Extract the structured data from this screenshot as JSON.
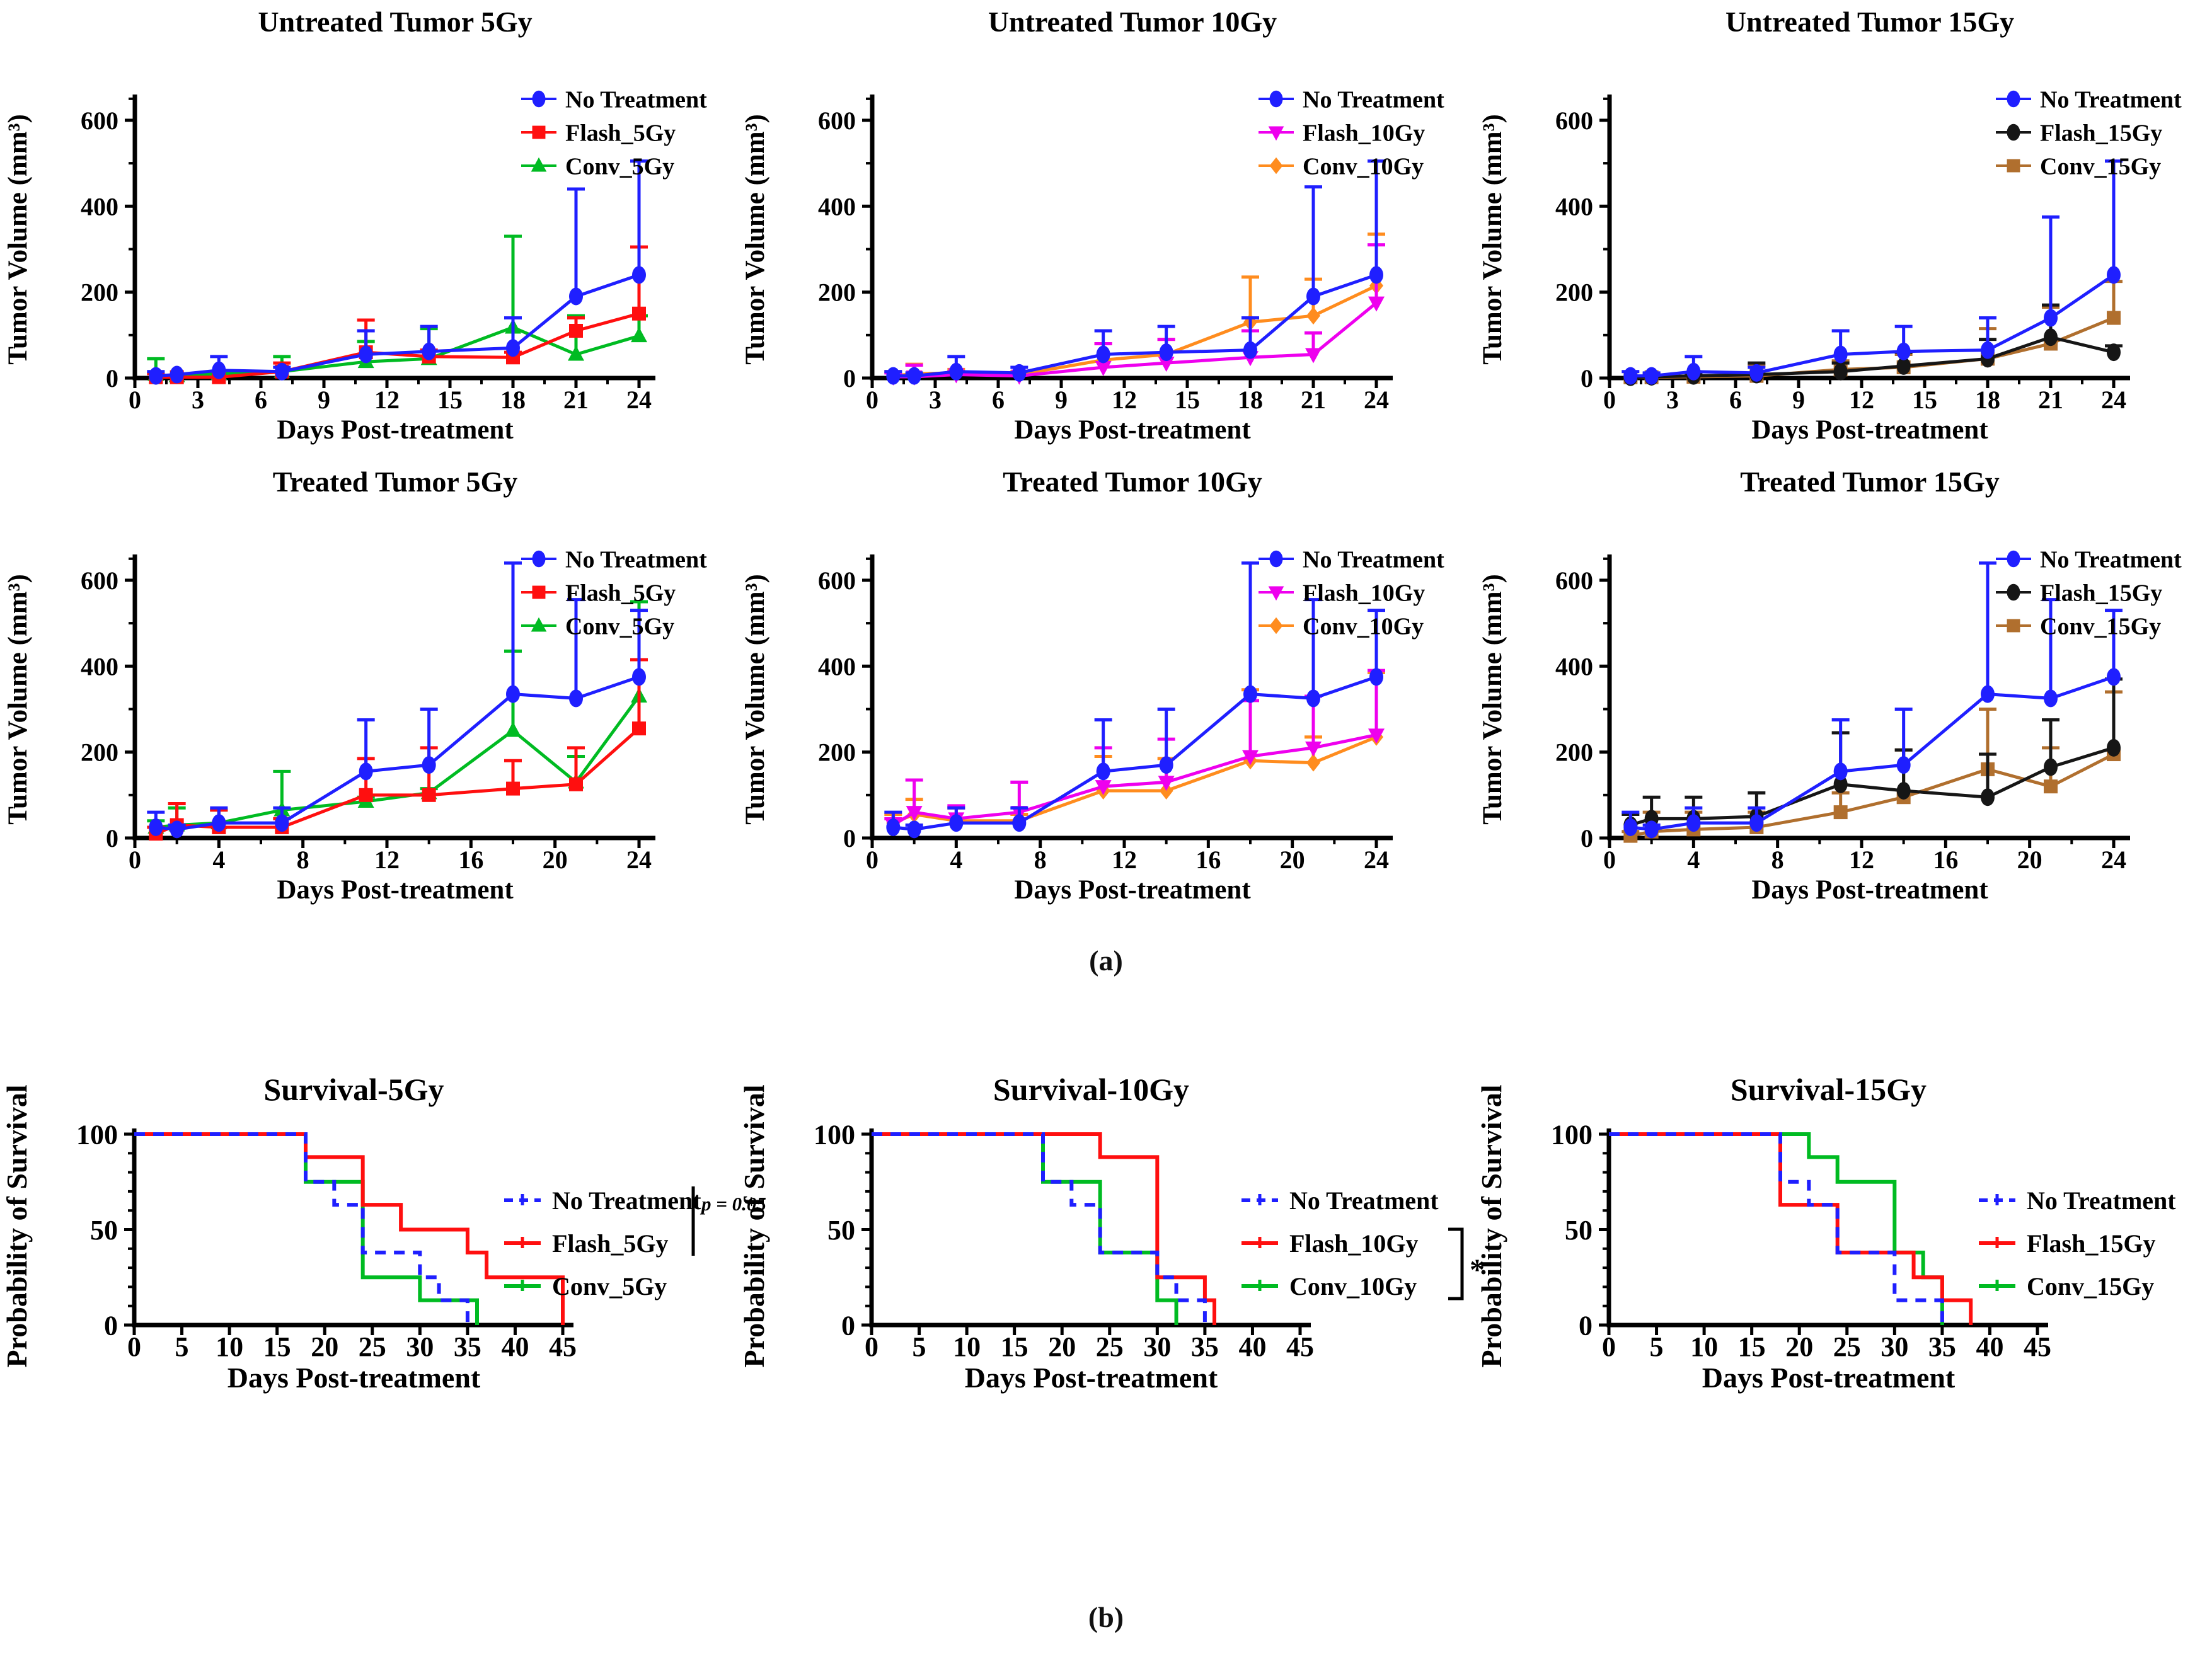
{
  "figure": {
    "panel_a_label": "(a)",
    "panel_b_label": "(b)"
  },
  "colors": {
    "blue": "#1f1fff",
    "red": "#ff0f0f",
    "green": "#00bb22",
    "magenta": "#ee00ee",
    "orange": "#ff8c1e",
    "black": "#161616",
    "brown": "#b06f2e",
    "axis": "#000000"
  },
  "chart_data": [
    {
      "type": "line",
      "title": "Untreated Tumor 5Gy",
      "xlabel": "Days Post-treatment",
      "ylabel": "Tumor Volume (mm³)",
      "xlim": [
        0,
        25.5
      ],
      "ylim": [
        0,
        660
      ],
      "xticks": [
        0,
        3,
        6,
        9,
        12,
        15,
        18,
        21,
        24
      ],
      "yticks": [
        0,
        200,
        400,
        600
      ],
      "yminors": [
        100,
        300,
        500,
        650
      ],
      "grid": false,
      "legend_position": "right",
      "x": [
        1,
        2,
        4,
        7,
        11,
        14,
        18,
        21,
        24
      ],
      "series": [
        {
          "name": "No Treatment",
          "color_key": "blue",
          "marker": "ellipse",
          "values": [
            5,
            8,
            18,
            15,
            55,
            62,
            70,
            190,
            240
          ],
          "upper": [
            15,
            12,
            50,
            25,
            110,
            120,
            140,
            440,
            505
          ]
        },
        {
          "name": "Flash_5Gy",
          "color_key": "red",
          "marker": "square",
          "values": [
            2,
            2,
            2,
            15,
            60,
            50,
            48,
            110,
            150
          ],
          "upper": [
            10,
            8,
            8,
            35,
            135,
            65,
            60,
            140,
            305
          ]
        },
        {
          "name": "Conv_5Gy",
          "color_key": "green",
          "marker": "triangle-up",
          "values": [
            8,
            5,
            10,
            15,
            38,
            45,
            118,
            55,
            98
          ],
          "upper": [
            45,
            10,
            15,
            50,
            85,
            115,
            330,
            145,
            145
          ]
        }
      ]
    },
    {
      "type": "line",
      "title": "Untreated Tumor 10Gy",
      "xlabel": "Days Post-treatment",
      "ylabel": "Tumor Volume (mm³)",
      "xlim": [
        0,
        25.5
      ],
      "ylim": [
        0,
        660
      ],
      "xticks": [
        0,
        3,
        6,
        9,
        12,
        15,
        18,
        21,
        24
      ],
      "yticks": [
        0,
        200,
        400,
        600
      ],
      "yminors": [
        100,
        300,
        500,
        650
      ],
      "grid": false,
      "legend_position": "right",
      "x": [
        1,
        2,
        4,
        7,
        11,
        14,
        18,
        21,
        24
      ],
      "series": [
        {
          "name": "No Treatment",
          "color_key": "blue",
          "marker": "ellipse",
          "values": [
            5,
            5,
            15,
            12,
            55,
            60,
            65,
            190,
            240
          ],
          "upper": [
            15,
            12,
            50,
            25,
            110,
            120,
            140,
            445,
            505
          ]
        },
        {
          "name": "Flash_10Gy",
          "color_key": "magenta",
          "marker": "triangle-down",
          "values": [
            3,
            3,
            8,
            5,
            25,
            35,
            48,
            55,
            175
          ],
          "upper": [
            12,
            30,
            15,
            10,
            80,
            90,
            110,
            105,
            310
          ]
        },
        {
          "name": "Conv_10Gy",
          "color_key": "orange",
          "marker": "diamond",
          "values": [
            5,
            10,
            12,
            8,
            42,
            55,
            130,
            145,
            215
          ],
          "upper": [
            15,
            32,
            20,
            15,
            80,
            90,
            235,
            230,
            335
          ]
        }
      ]
    },
    {
      "type": "line",
      "title": "Untreated Tumor 15Gy",
      "xlabel": "Days Post-treatment",
      "ylabel": "Tumor Volume (mm³)",
      "xlim": [
        0,
        25.5
      ],
      "ylim": [
        0,
        660
      ],
      "xticks": [
        0,
        3,
        6,
        9,
        12,
        15,
        18,
        21,
        24
      ],
      "yticks": [
        0,
        200,
        400,
        600
      ],
      "yminors": [
        100,
        300,
        500,
        650
      ],
      "grid": false,
      "legend_position": "right",
      "x": [
        1,
        2,
        4,
        7,
        11,
        14,
        18,
        21,
        24
      ],
      "series": [
        {
          "name": "No Treatment",
          "color_key": "blue",
          "marker": "ellipse",
          "values": [
            5,
            5,
            15,
            12,
            55,
            62,
            65,
            140,
            240
          ],
          "upper": [
            15,
            12,
            50,
            25,
            110,
            120,
            140,
            375,
            505
          ]
        },
        {
          "name": "Flash_15Gy",
          "color_key": "black",
          "marker": "ellipse",
          "values": [
            2,
            3,
            5,
            8,
            15,
            28,
            45,
            95,
            60
          ],
          "upper": [
            8,
            10,
            12,
            35,
            35,
            60,
            90,
            170,
            75
          ]
        },
        {
          "name": "Conv_15Gy",
          "color_key": "brown",
          "marker": "square",
          "values": [
            2,
            2,
            3,
            5,
            20,
            25,
            45,
            80,
            140
          ],
          "upper": [
            8,
            8,
            10,
            30,
            40,
            55,
            115,
            165,
            225
          ]
        }
      ]
    },
    {
      "type": "line",
      "title": "Treated Tumor 5Gy",
      "xlabel": "Days Post-treatment",
      "ylabel": "Tumor Volume (mm³)",
      "xlim": [
        0,
        25.5
      ],
      "ylim": [
        0,
        660
      ],
      "xticks": [
        0,
        4,
        8,
        12,
        16,
        20,
        24
      ],
      "yticks": [
        0,
        200,
        400,
        600
      ],
      "yminors": [
        100,
        300,
        500,
        650
      ],
      "grid": false,
      "legend_position": "right",
      "x": [
        1,
        2,
        4,
        7,
        11,
        14,
        18,
        21,
        24
      ],
      "series": [
        {
          "name": "No Treatment",
          "color_key": "blue",
          "marker": "ellipse",
          "values": [
            25,
            20,
            35,
            35,
            155,
            170,
            335,
            325,
            375
          ],
          "upper": [
            60,
            30,
            70,
            70,
            275,
            300,
            640,
            555,
            530
          ]
        },
        {
          "name": "Flash_5Gy",
          "color_key": "red",
          "marker": "square",
          "values": [
            10,
            30,
            25,
            25,
            100,
            100,
            115,
            125,
            255
          ],
          "upper": [
            25,
            80,
            65,
            45,
            185,
            210,
            180,
            210,
            415
          ]
        },
        {
          "name": "Conv_5Gy",
          "color_key": "green",
          "marker": "triangle-up",
          "values": [
            25,
            30,
            35,
            65,
            85,
            105,
            250,
            130,
            330
          ],
          "upper": [
            40,
            70,
            65,
            155,
            95,
            115,
            435,
            190,
            550
          ]
        }
      ]
    },
    {
      "type": "line",
      "title": "Treated Tumor 10Gy",
      "xlabel": "Days Post-treatment",
      "ylabel": "Tumor Volume (mm³)",
      "xlim": [
        0,
        25.5
      ],
      "ylim": [
        0,
        660
      ],
      "xticks": [
        0,
        4,
        8,
        12,
        16,
        20,
        24
      ],
      "yticks": [
        0,
        200,
        400,
        600
      ],
      "yminors": [
        100,
        300,
        500,
        650
      ],
      "grid": false,
      "legend_position": "right",
      "x": [
        1,
        2,
        4,
        7,
        11,
        14,
        18,
        21,
        24
      ],
      "series": [
        {
          "name": "No Treatment",
          "color_key": "blue",
          "marker": "ellipse",
          "values": [
            25,
            20,
            35,
            35,
            155,
            170,
            335,
            325,
            375
          ],
          "upper": [
            60,
            30,
            70,
            70,
            275,
            300,
            640,
            555,
            530
          ]
        },
        {
          "name": "Flash_10Gy",
          "color_key": "magenta",
          "marker": "triangle-down",
          "values": [
            30,
            60,
            45,
            60,
            120,
            130,
            190,
            210,
            240
          ],
          "upper": [
            45,
            135,
            75,
            130,
            210,
            230,
            320,
            330,
            390
          ]
        },
        {
          "name": "Conv_10Gy",
          "color_key": "orange",
          "marker": "diamond",
          "values": [
            35,
            55,
            40,
            40,
            110,
            110,
            180,
            175,
            235
          ],
          "upper": [
            55,
            90,
            70,
            55,
            190,
            185,
            345,
            235,
            385
          ]
        }
      ]
    },
    {
      "type": "line",
      "title": "Treated Tumor 15Gy",
      "xlabel": "Days Post-treatment",
      "ylabel": "Tumor Volume (mm³)",
      "xlim": [
        0,
        25.5
      ],
      "ylim": [
        0,
        660
      ],
      "xticks": [
        0,
        4,
        8,
        12,
        16,
        20,
        24
      ],
      "yticks": [
        0,
        200,
        400,
        600
      ],
      "yminors": [
        100,
        300,
        500,
        650
      ],
      "grid": false,
      "legend_position": "right",
      "x": [
        1,
        2,
        4,
        7,
        11,
        14,
        18,
        21,
        24
      ],
      "series": [
        {
          "name": "No Treatment",
          "color_key": "blue",
          "marker": "ellipse",
          "values": [
            25,
            20,
            35,
            35,
            155,
            170,
            335,
            325,
            375
          ],
          "upper": [
            60,
            30,
            70,
            70,
            275,
            300,
            640,
            555,
            530
          ]
        },
        {
          "name": "Flash_15Gy",
          "color_key": "black",
          "marker": "ellipse",
          "values": [
            30,
            45,
            45,
            50,
            125,
            110,
            95,
            165,
            210
          ],
          "upper": [
            55,
            95,
            95,
            105,
            245,
            205,
            195,
            275,
            370
          ]
        },
        {
          "name": "Conv_15Gy",
          "color_key": "brown",
          "marker": "square",
          "values": [
            5,
            15,
            20,
            25,
            60,
            95,
            160,
            120,
            195
          ],
          "upper": [
            15,
            60,
            60,
            60,
            105,
            205,
            300,
            210,
            340
          ]
        }
      ]
    },
    {
      "type": "step",
      "title": "Survival-5Gy",
      "xlabel": "Days Post-treatment",
      "ylabel": "Probability of Survival",
      "xlim": [
        0,
        47
      ],
      "ylim": [
        0,
        103
      ],
      "xticks": [
        0,
        5,
        10,
        15,
        20,
        25,
        30,
        35,
        40,
        45
      ],
      "yticks": [
        0,
        50,
        100
      ],
      "yminor_step": 10,
      "grid": false,
      "legend_position": "right",
      "series": [
        {
          "name": "No Treatment",
          "color_key": "blue",
          "dash": true,
          "x": [
            0,
            18,
            21,
            24,
            30,
            32,
            35
          ],
          "y": [
            100,
            75,
            63,
            38,
            25,
            13,
            0
          ]
        },
        {
          "name": "Flash_5Gy",
          "color_key": "red",
          "dash": false,
          "x": [
            0,
            18,
            24,
            28,
            35,
            37,
            45
          ],
          "y": [
            100,
            88,
            63,
            50,
            38,
            25,
            0
          ]
        },
        {
          "name": "Conv_5Gy",
          "color_key": "green",
          "dash": false,
          "x": [
            0,
            18,
            24,
            30,
            36
          ],
          "y": [
            100,
            75,
            25,
            13,
            0
          ]
        }
      ],
      "annotation": {
        "kind": "pbar",
        "text": "p = 0.05",
        "span": [
          0,
          1
        ]
      }
    },
    {
      "type": "step",
      "title": "Survival-10Gy",
      "xlabel": "Days Post-treatment",
      "ylabel": "Probability of Survival",
      "xlim": [
        0,
        47
      ],
      "ylim": [
        0,
        103
      ],
      "xticks": [
        0,
        5,
        10,
        15,
        20,
        25,
        30,
        35,
        40,
        45
      ],
      "yticks": [
        0,
        50,
        100
      ],
      "yminor_step": 10,
      "grid": false,
      "legend_position": "right",
      "series": [
        {
          "name": "No Treatment",
          "color_key": "blue",
          "dash": true,
          "x": [
            0,
            18,
            21,
            24,
            30,
            32,
            35
          ],
          "y": [
            100,
            75,
            63,
            38,
            25,
            13,
            0
          ]
        },
        {
          "name": "Flash_10Gy",
          "color_key": "red",
          "dash": false,
          "x": [
            0,
            24,
            30,
            35,
            36
          ],
          "y": [
            100,
            88,
            25,
            13,
            0
          ]
        },
        {
          "name": "Conv_10Gy",
          "color_key": "green",
          "dash": false,
          "x": [
            0,
            18,
            24,
            30,
            32
          ],
          "y": [
            100,
            75,
            38,
            13,
            0
          ]
        }
      ],
      "annotation": {
        "kind": "bracket",
        "text": "*",
        "span": [
          1,
          2
        ]
      }
    },
    {
      "type": "step",
      "title": "Survival-15Gy",
      "xlabel": "Days Post-treatment",
      "ylabel": "Probability of Survival",
      "xlim": [
        0,
        47
      ],
      "ylim": [
        0,
        103
      ],
      "xticks": [
        0,
        5,
        10,
        15,
        20,
        25,
        30,
        35,
        40,
        45
      ],
      "yticks": [
        0,
        50,
        100
      ],
      "yminor_step": 10,
      "grid": false,
      "legend_position": "right",
      "series": [
        {
          "name": "No Treatment",
          "color_key": "blue",
          "dash": true,
          "x": [
            0,
            18,
            21,
            24,
            30,
            35
          ],
          "y": [
            100,
            75,
            63,
            38,
            13,
            0
          ]
        },
        {
          "name": "Flash_15Gy",
          "color_key": "red",
          "dash": false,
          "x": [
            0,
            18,
            24,
            32,
            35,
            38
          ],
          "y": [
            100,
            63,
            38,
            25,
            13,
            0
          ]
        },
        {
          "name": "Conv_15Gy",
          "color_key": "green",
          "dash": false,
          "x": [
            0,
            21,
            24,
            30,
            33,
            35
          ],
          "y": [
            100,
            88,
            75,
            38,
            25,
            0
          ]
        }
      ],
      "annotation": null
    }
  ]
}
